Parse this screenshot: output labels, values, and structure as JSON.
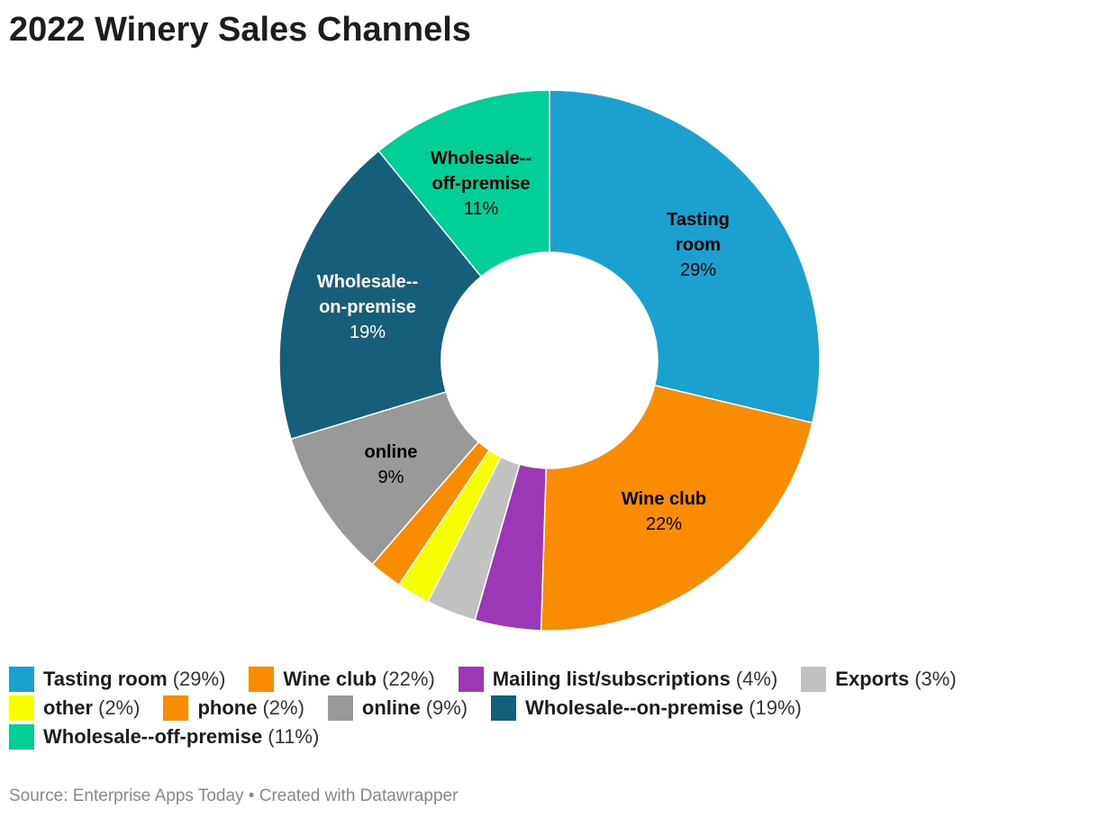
{
  "title": "2022 Winery Sales Channels",
  "source": "Source: Enterprise Apps Today • Created with Datawrapper",
  "chart_data": {
    "type": "pie",
    "donut": true,
    "title": "2022 Winery Sales Channels",
    "categories": [
      "Tasting room",
      "Wine club",
      "Mailing list/subscriptions",
      "Exports",
      "other",
      "phone",
      "online",
      "Wholesale--on-premise",
      "Wholesale--off-premise"
    ],
    "values": [
      29,
      22,
      4,
      3,
      2,
      2,
      9,
      19,
      11
    ],
    "colors": [
      "#1aa1cf",
      "#f98c00",
      "#9c37b6",
      "#c2c2c2",
      "#f5ff00",
      "#f98c00",
      "#999999",
      "#165f7a",
      "#00d097"
    ],
    "legend_position": "bottom"
  },
  "legend": [
    {
      "name": "Tasting room",
      "pct": "(29%)"
    },
    {
      "name": "Wine club",
      "pct": "(22%)"
    },
    {
      "name": "Mailing list/subscriptions",
      "pct": "(4%)"
    },
    {
      "name": "Exports",
      "pct": "(3%)"
    },
    {
      "name": "other",
      "pct": "(2%)"
    },
    {
      "name": "phone",
      "pct": "(2%)"
    },
    {
      "name": "online",
      "pct": "(9%)"
    },
    {
      "name": "Wholesale--on-premise",
      "pct": "(19%)"
    },
    {
      "name": "Wholesale--off-premise",
      "pct": "(11%)"
    }
  ],
  "labels": [
    {
      "l1": "Tasting",
      "l2": "room",
      "pct": "29%"
    },
    {
      "l1": "Wine club",
      "pct": "22%"
    },
    {
      "l1": "online",
      "pct": "9%"
    },
    {
      "l1": "Wholesale--",
      "l2": "on-premise",
      "pct": "19%"
    },
    {
      "l1": "Wholesale--",
      "l2": "off-premise",
      "pct": "11%"
    }
  ]
}
